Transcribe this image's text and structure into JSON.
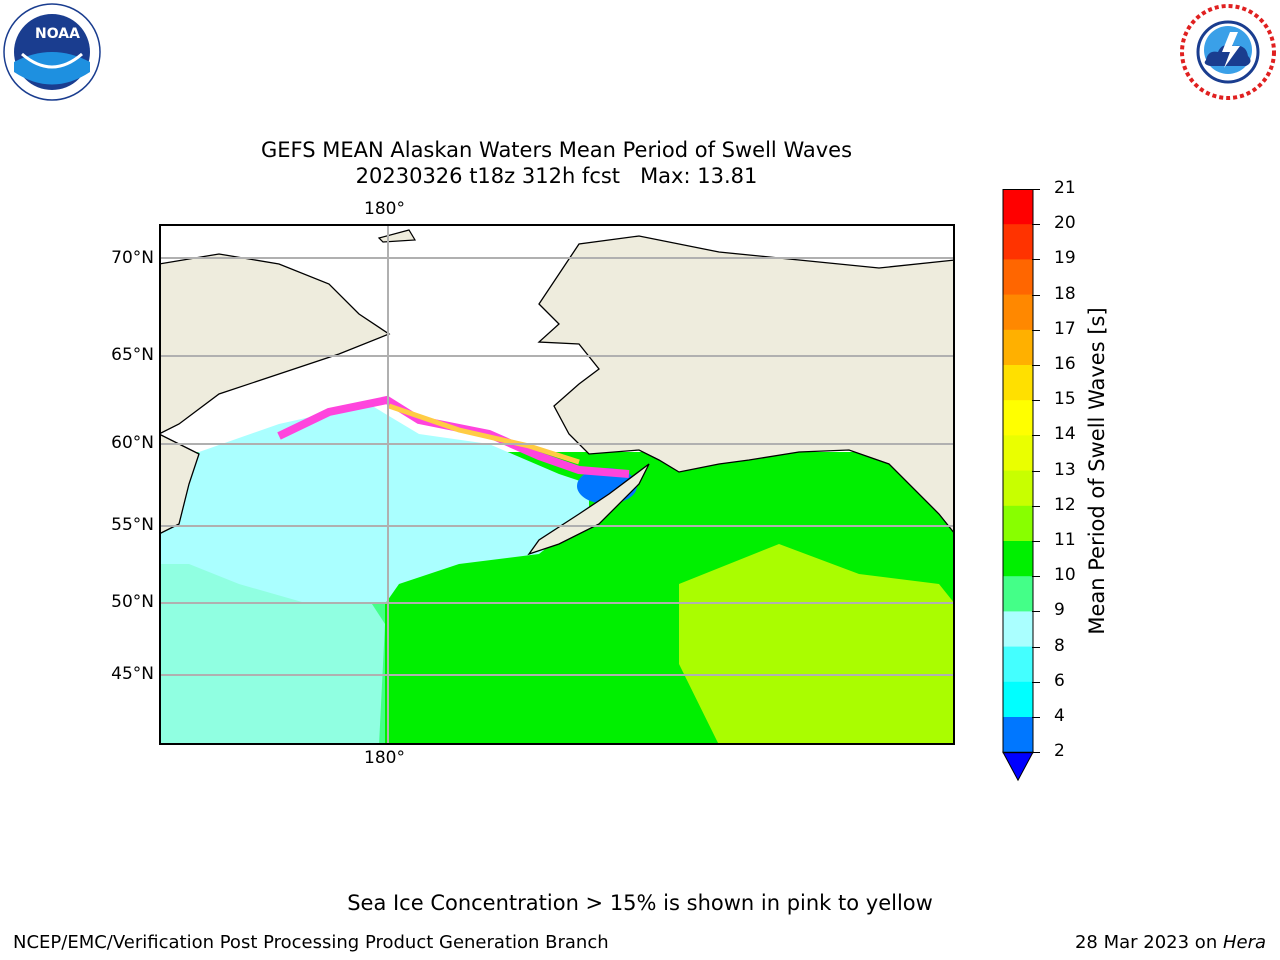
{
  "logos": {
    "left": {
      "text": "NOAA",
      "icon": "noaa-logo-icon"
    },
    "right": {
      "icon": "nws-logo-icon"
    }
  },
  "title": {
    "line1": "GEFS MEAN Alaskan Waters Mean Period of Swell Waves",
    "line2": "20230326 t18z 312h fcst   Max: 13.81"
  },
  "map": {
    "lon_label_top": "180°",
    "lon_label_bottom": "180°",
    "lat_labels": [
      "70°N",
      "65°N",
      "60°N",
      "55°N",
      "50°N",
      "45°N"
    ],
    "land_color": "#eeecdd",
    "grid_color": "#b0b0b0"
  },
  "colorbar": {
    "label": "Mean Period of Swell Waves [s]",
    "ticks": [
      "21",
      "20",
      "19",
      "18",
      "17",
      "16",
      "15",
      "14",
      "13",
      "12",
      "11",
      "10",
      "9",
      "8",
      "6",
      "4",
      "2"
    ],
    "colors": [
      "#ff0000",
      "#ff3300",
      "#ff6600",
      "#ff8800",
      "#ffb000",
      "#ffe000",
      "#ffff00",
      "#eaff00",
      "#c8ff00",
      "#88ff00",
      "#00f000",
      "#44ff88",
      "#aaffff",
      "#44ffff",
      "#00ffff",
      "#0077ff",
      "#0000ff"
    ]
  },
  "note": "Sea Ice Concentration > 15% is shown in pink to yellow",
  "footer": {
    "left": "NCEP/EMC/Verification Post Processing Product Generation Branch",
    "right_prefix": "28 Mar 2023 on ",
    "right_host": "Hera"
  }
}
